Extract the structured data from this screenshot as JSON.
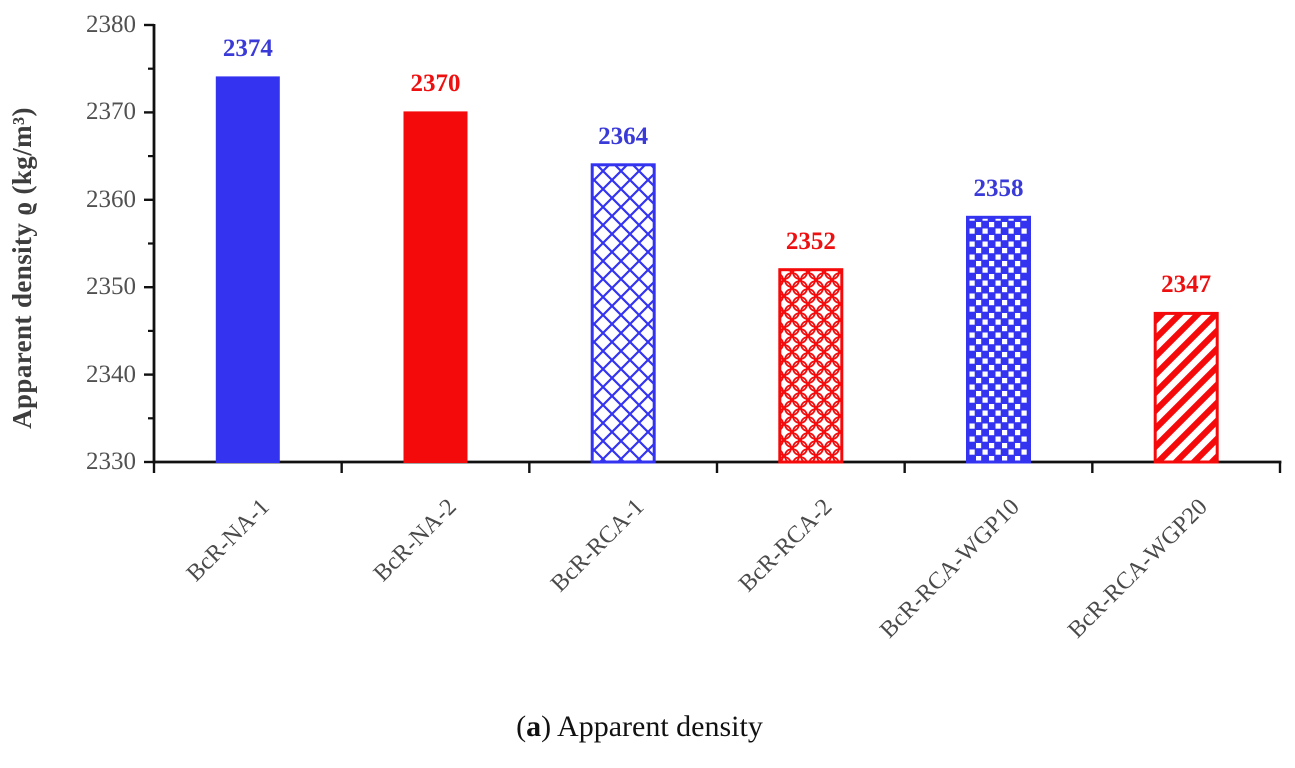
{
  "figure": {
    "caption": {
      "open": "(",
      "letter": "a",
      "close": ")",
      "text": "Apparent density"
    }
  },
  "chart_data": {
    "type": "bar",
    "title": "",
    "xlabel": "",
    "ylabel": "Apparent density ϱ (kg/m³)",
    "ylim": [
      2330,
      2380
    ],
    "ytick_interval": 10,
    "yminor_tick_interval": 5,
    "ytick_labels": [
      "2330",
      "2340",
      "2350",
      "2360",
      "2370",
      "2380"
    ],
    "grid": false,
    "legend": "none",
    "categories": [
      "BcR-NA-1",
      "BcR-NA-2",
      "BcR-RCA-1",
      "BcR-RCA-2",
      "BcR-RCA-WGP10",
      "BcR-RCA-WGP20"
    ],
    "values": [
      2374,
      2370,
      2364,
      2352,
      2358,
      2347
    ],
    "value_labels": [
      "2374",
      "2370",
      "2364",
      "2352",
      "2358",
      "2347"
    ],
    "bar_colors": [
      "blue",
      "red",
      "blue",
      "red",
      "blue",
      "red"
    ],
    "bar_patterns": [
      "solid",
      "solid",
      "crosshatch",
      "scales",
      "checker",
      "stripes"
    ],
    "palette": {
      "blue": "#3333f0",
      "red": "#f40a0a",
      "label_blue": "#3a3ad8",
      "label_red": "#ee1010",
      "axis": "#111111",
      "tick_label": "#515151",
      "category_label": "#4a4a4a",
      "axis_title": "#3d3d3d"
    }
  }
}
